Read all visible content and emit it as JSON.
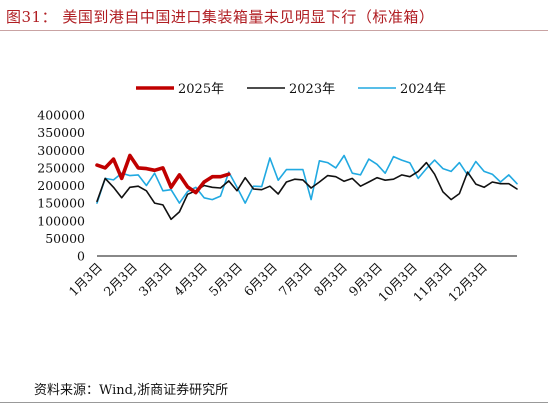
{
  "title": "图31：  美国到港自中国进口集装箱量未见明显下行（标准箱）",
  "source": "资料来源：Wind,浙商证券研究所",
  "chart_data": {
    "type": "line",
    "ylim": [
      0,
      400000
    ],
    "yticks": [
      "0",
      "50000",
      "100000",
      "150000",
      "200000",
      "250000",
      "300000",
      "350000",
      "400000"
    ],
    "xtick_labels": [
      "1月3日",
      "2月3日",
      "3月3日",
      "4月3日",
      "5月3日",
      "6月3日",
      "7月3日",
      "8月3日",
      "9月3日",
      "10月3日",
      "11月3日",
      "12月3日"
    ],
    "x_count": 52,
    "legend_position": "top",
    "series": [
      {
        "name": "2025年",
        "color": "#c00000",
        "width": 3.6,
        "values": [
          258000,
          250000,
          275000,
          220000,
          285000,
          250000,
          248000,
          243000,
          250000,
          195000,
          230000,
          196000,
          180000,
          210000,
          225000,
          225000,
          232000
        ]
      },
      {
        "name": "2023年",
        "color": "#111111",
        "width": 1.6,
        "values": [
          155000,
          220000,
          195000,
          165000,
          195000,
          198000,
          185000,
          150000,
          145000,
          104000,
          125000,
          175000,
          185000,
          200000,
          195000,
          193000,
          213000,
          185000,
          222000,
          190000,
          188000,
          198000,
          176000,
          210000,
          218000,
          216000,
          193000,
          210000,
          228000,
          225000,
          212000,
          220000,
          198000,
          210000,
          222000,
          215000,
          218000,
          230000,
          225000,
          240000,
          265000,
          232000,
          182000,
          160000,
          177000,
          238000,
          204000,
          195000,
          210000,
          205000,
          205000,
          190000
        ]
      },
      {
        "name": "2024年",
        "color": "#21a9e1",
        "width": 1.6,
        "values": [
          150000,
          220000,
          216000,
          235000,
          228000,
          230000,
          200000,
          235000,
          185000,
          188000,
          150000,
          183000,
          195000,
          165000,
          160000,
          170000,
          238000,
          195000,
          150000,
          198000,
          197000,
          278000,
          215000,
          245000,
          245000,
          245000,
          160000,
          270000,
          265000,
          250000,
          285000,
          235000,
          230000,
          275000,
          260000,
          235000,
          282000,
          272000,
          264000,
          220000,
          248000,
          272000,
          248000,
          240000,
          265000,
          230000,
          268000,
          240000,
          232000,
          210000,
          230000,
          205000
        ]
      }
    ]
  }
}
